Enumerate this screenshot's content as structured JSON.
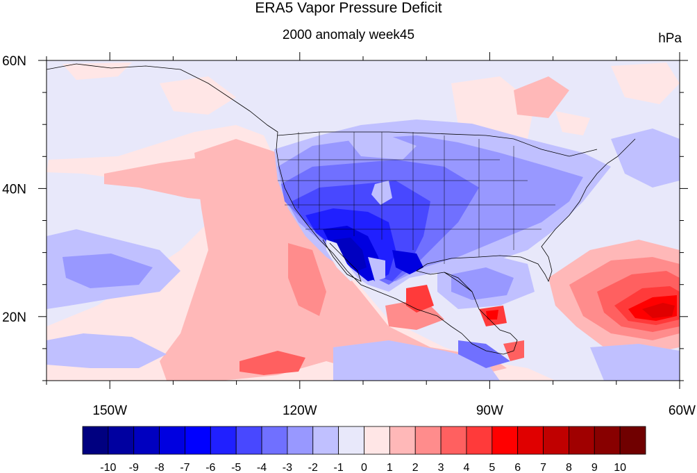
{
  "title": "ERA5 Vapor Pressure Deficit",
  "subtitle": "2000 anomaly week45",
  "units": "hPa",
  "map": {
    "lat_ticks": [
      "60N",
      "40N",
      "20N"
    ],
    "lon_ticks": [
      "150W",
      "120W",
      "90W",
      "60W"
    ],
    "lat_range": [
      10,
      60
    ],
    "lon_range": [
      -160,
      -60
    ],
    "projection": "cylindrical equidistant",
    "overlays": [
      "coastlines",
      "US state boundaries",
      "national boundaries"
    ]
  },
  "colorbar": {
    "labels": [
      "-10",
      "-9",
      "-8",
      "-7",
      "-6",
      "-5",
      "-4",
      "-3",
      "-2",
      "-1",
      "0",
      "1",
      "2",
      "3",
      "4",
      "5",
      "6",
      "7",
      "8",
      "9",
      "10"
    ],
    "colors": [
      "#000080",
      "#0000a0",
      "#0000c0",
      "#0000e0",
      "#0000ff",
      "#2020ff",
      "#4848ff",
      "#7070ff",
      "#9898ff",
      "#c0c0ff",
      "#e8e8fa",
      "#ffe6e6",
      "#ffb8b8",
      "#ff8c8c",
      "#ff6060",
      "#ff3a3a",
      "#ff0000",
      "#e00000",
      "#c00000",
      "#a00000",
      "#880000",
      "#700000"
    ]
  },
  "colors": {
    "background": "#e8e8fa",
    "strong_negative": "#1414d8",
    "strong_positive": "#e82020"
  }
}
